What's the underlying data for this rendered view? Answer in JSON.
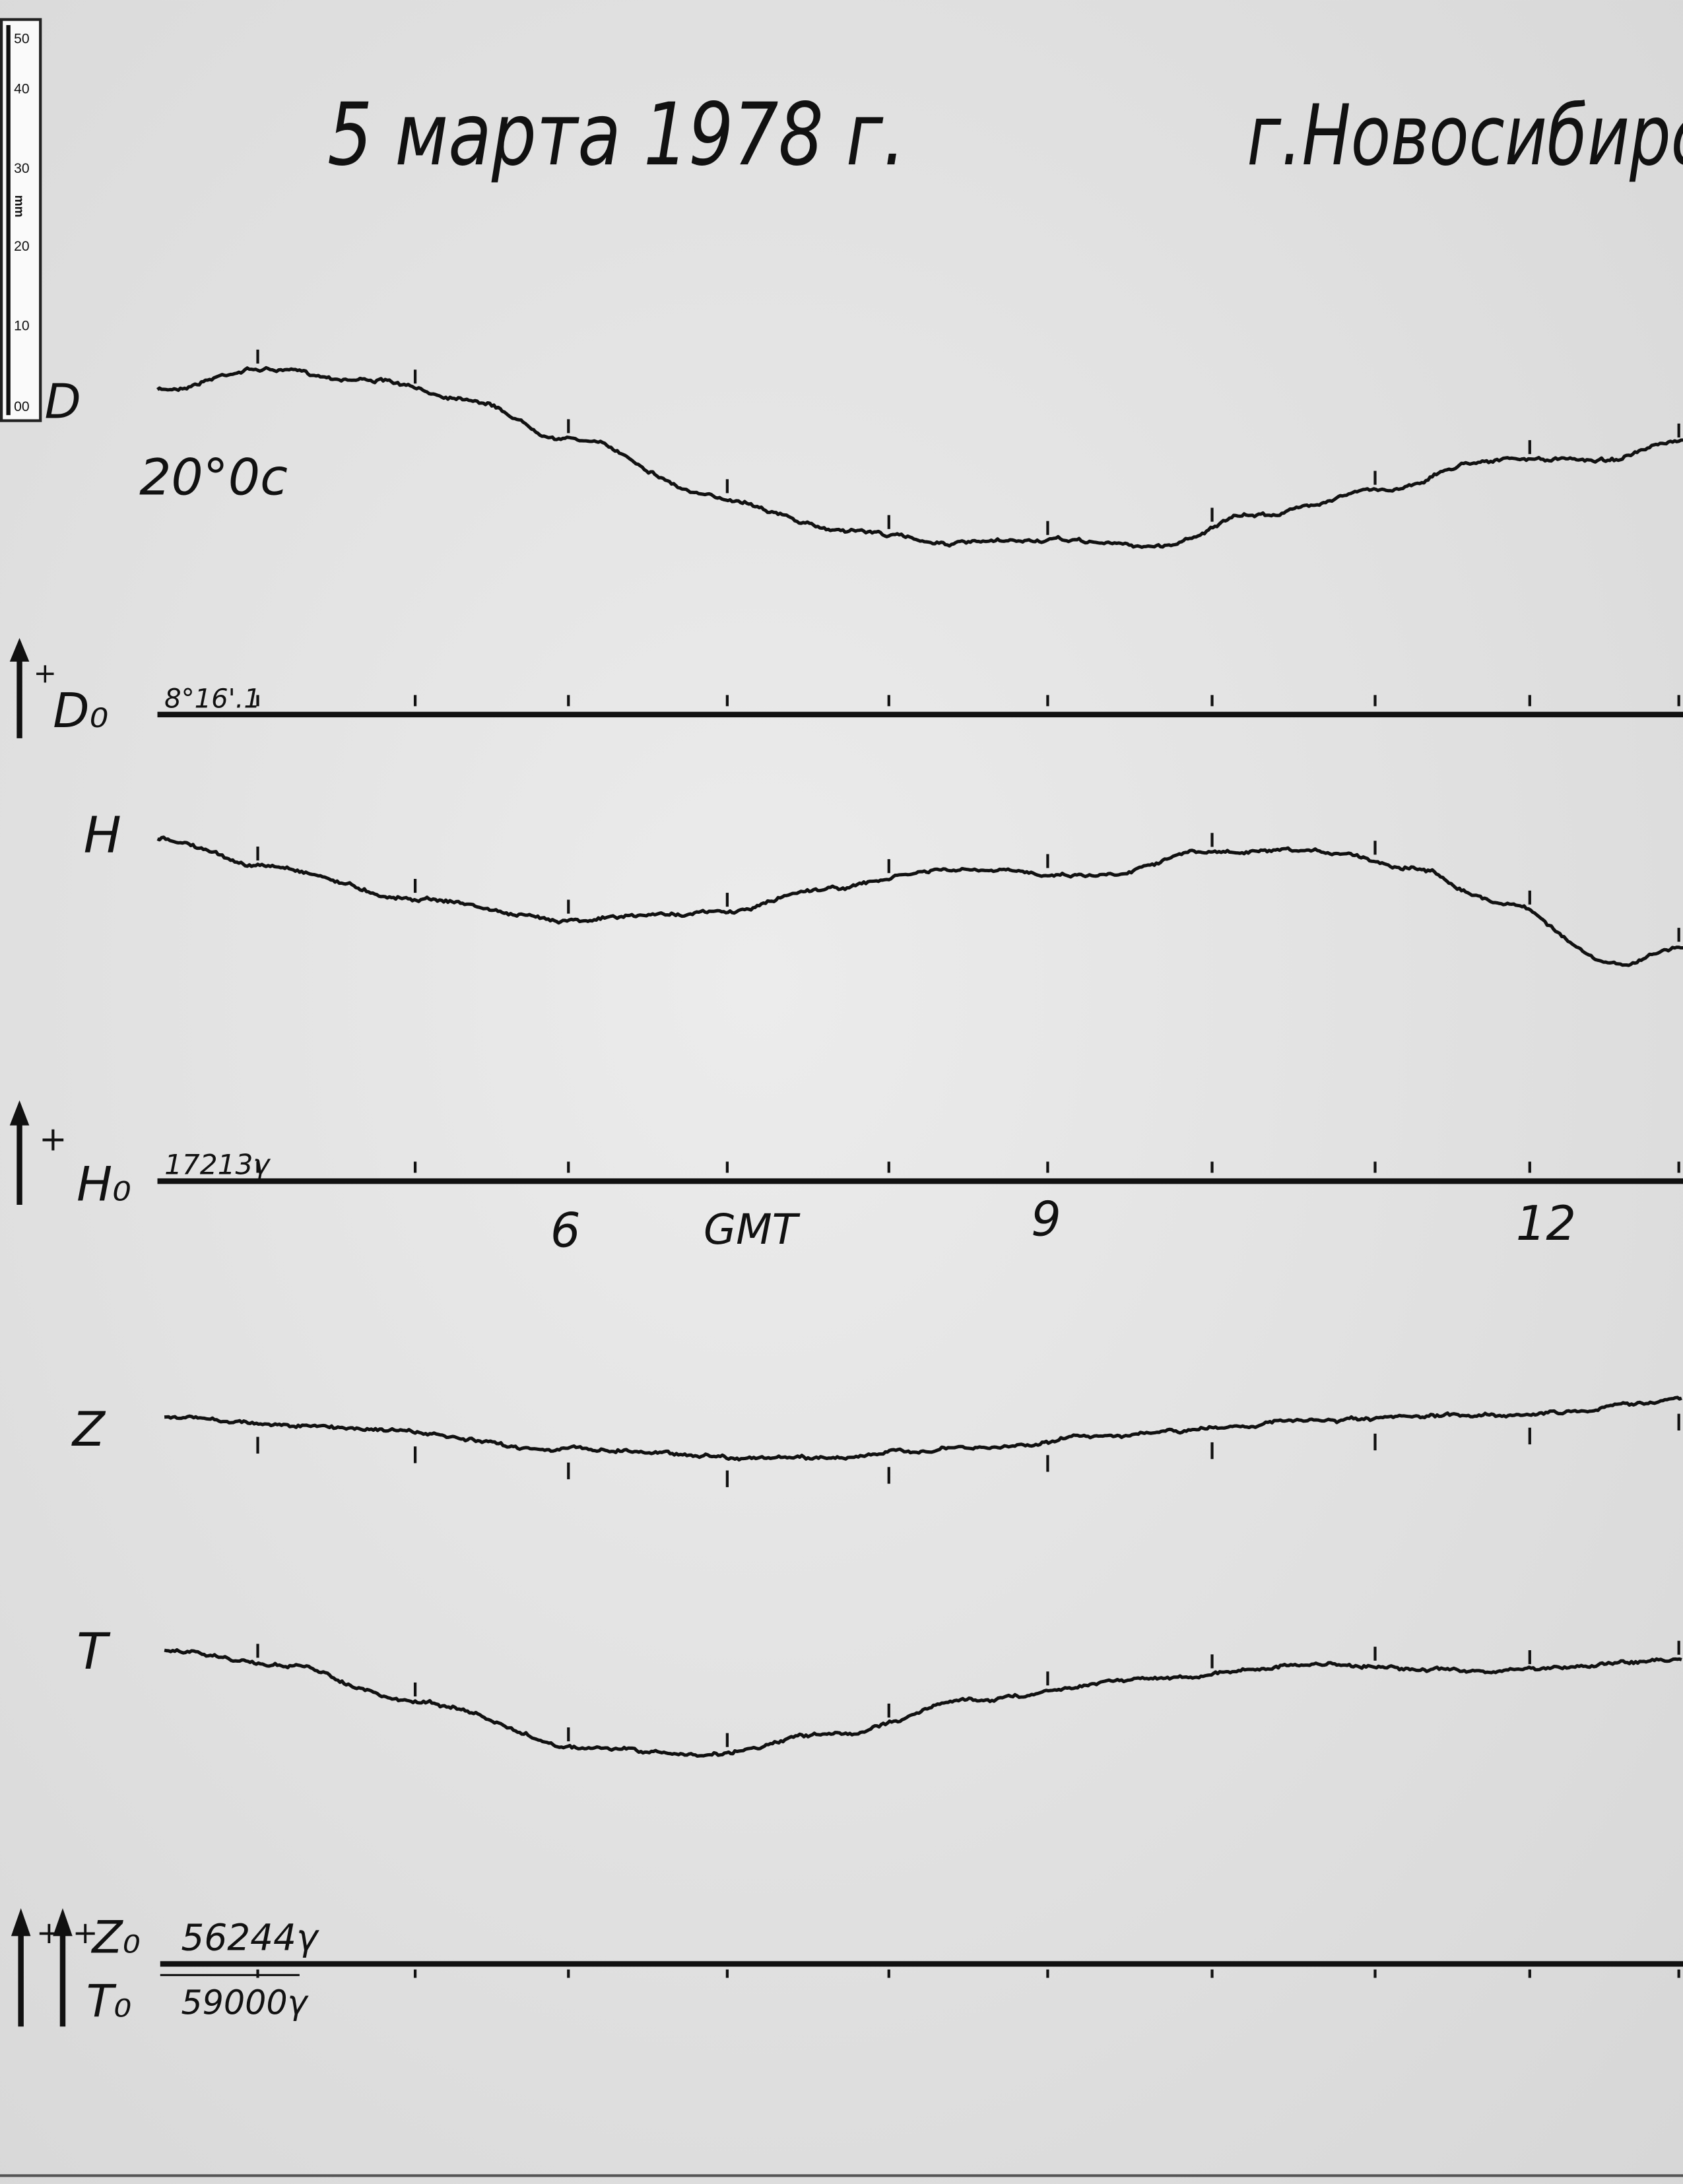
{
  "header": {
    "date": "5 марта 1978 г.",
    "place": "г.Новосибирс"
  },
  "ruler": {
    "labels": [
      "50",
      "40",
      "30",
      "20",
      "10",
      "00"
    ],
    "unit": "mm"
  },
  "traces": [
    {
      "label": "D",
      "note": "20°0с"
    },
    {
      "label": "H"
    },
    {
      "label": "Z"
    },
    {
      "label": "T"
    }
  ],
  "baselines": [
    {
      "sign": "+",
      "label": "D₀",
      "value": "8°16'.1"
    },
    {
      "sign": "+",
      "label": "H₀",
      "value": "17213γ"
    },
    {
      "signs": [
        "+",
        "+"
      ],
      "labels": [
        "Z₀",
        "T₀"
      ],
      "values": [
        "56244γ",
        "59000γ"
      ]
    }
  ],
  "time_axis": [
    "6",
    "GMT",
    "9",
    "12"
  ]
}
